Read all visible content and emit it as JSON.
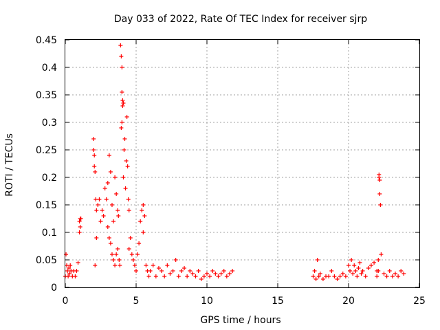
{
  "chart_data": {
    "type": "scatter",
    "title": "Day 033 of 2022, Rate Of TEC Index for receiver sjrp",
    "xlabel": "GPS time / hours",
    "ylabel": "ROTI / TECUs",
    "xlim": [
      0,
      25
    ],
    "ylim": [
      0,
      0.45
    ],
    "xticks": [
      "0",
      "5",
      "10",
      "15",
      "20",
      "25"
    ],
    "yticks": [
      "0",
      "0.05",
      "0.1",
      "0.15",
      "0.2",
      "0.25",
      "0.3",
      "0.35",
      "0.4",
      "0.45"
    ],
    "grid": true,
    "marker": "+",
    "marker_color": "#ff0000",
    "series": [
      {
        "x": [
          0.0,
          0.05,
          0.1,
          0.15,
          0.2,
          0.25,
          0.3,
          0.35,
          0.4,
          0.5,
          0.6,
          0.7,
          0.8,
          0.9,
          1.0,
          1.0,
          1.05,
          1.05,
          1.1,
          2.0,
          2.0,
          2.05,
          2.05,
          2.1,
          2.1,
          2.15,
          2.2,
          2.2,
          2.3,
          2.4,
          2.5,
          2.6,
          2.7,
          2.8,
          2.9,
          3.0,
          3.0,
          3.1,
          3.1,
          3.2,
          3.2,
          3.3,
          3.3,
          3.4,
          3.4,
          3.5,
          3.5,
          3.6,
          3.6,
          3.7,
          3.7,
          3.75,
          3.8,
          3.85,
          3.9,
          3.95,
          3.95,
          4.0,
          4.0,
          4.0,
          4.05,
          4.05,
          4.1,
          4.1,
          4.15,
          4.2,
          4.25,
          4.3,
          4.35,
          4.4,
          4.45,
          4.5,
          4.5,
          4.6,
          4.7,
          4.8,
          4.9,
          5.0,
          5.1,
          5.2,
          5.3,
          5.4,
          5.5,
          5.5,
          5.6,
          5.7,
          5.8,
          5.9,
          6.0,
          6.2,
          6.4,
          6.6,
          6.8,
          7.0,
          7.2,
          7.4,
          7.6,
          7.8,
          8.0,
          8.2,
          8.4,
          8.6,
          8.8,
          9.0,
          9.2,
          9.4,
          9.6,
          9.8,
          10.0,
          10.2,
          10.4,
          10.6,
          10.8,
          11.0,
          11.2,
          11.4,
          11.6,
          11.8,
          17.5,
          17.6,
          17.7,
          17.8,
          17.9,
          18.0,
          18.2,
          18.4,
          18.6,
          18.8,
          19.0,
          19.2,
          19.4,
          19.6,
          19.8,
          20.0,
          20.1,
          20.2,
          20.3,
          20.4,
          20.5,
          20.6,
          20.7,
          20.8,
          20.9,
          21.0,
          21.2,
          21.4,
          21.6,
          21.8,
          22.0,
          22.0,
          22.1,
          22.1,
          22.15,
          22.15,
          22.2,
          22.2,
          22.25,
          22.3,
          22.5,
          22.7,
          22.9,
          23.1,
          23.3,
          23.5,
          23.7,
          23.9
        ],
        "y": [
          0.02,
          0.06,
          0.04,
          0.03,
          0.02,
          0.035,
          0.025,
          0.04,
          0.03,
          0.02,
          0.03,
          0.02,
          0.03,
          0.045,
          0.12,
          0.1,
          0.125,
          0.11,
          0.125,
          0.27,
          0.25,
          0.24,
          0.22,
          0.21,
          0.04,
          0.16,
          0.14,
          0.09,
          0.15,
          0.16,
          0.12,
          0.14,
          0.13,
          0.18,
          0.16,
          0.19,
          0.11,
          0.24,
          0.09,
          0.21,
          0.08,
          0.15,
          0.06,
          0.12,
          0.05,
          0.2,
          0.04,
          0.17,
          0.06,
          0.14,
          0.07,
          0.13,
          0.05,
          0.04,
          0.44,
          0.42,
          0.29,
          0.4,
          0.355,
          0.3,
          0.34,
          0.33,
          0.335,
          0.2,
          0.25,
          0.27,
          0.18,
          0.23,
          0.31,
          0.22,
          0.16,
          0.14,
          0.07,
          0.09,
          0.06,
          0.05,
          0.04,
          0.03,
          0.06,
          0.08,
          0.12,
          0.14,
          0.15,
          0.1,
          0.13,
          0.04,
          0.03,
          0.02,
          0.03,
          0.04,
          0.02,
          0.035,
          0.03,
          0.02,
          0.04,
          0.025,
          0.03,
          0.05,
          0.02,
          0.03,
          0.035,
          0.02,
          0.03,
          0.025,
          0.02,
          0.03,
          0.015,
          0.02,
          0.025,
          0.02,
          0.03,
          0.025,
          0.02,
          0.025,
          0.03,
          0.02,
          0.025,
          0.03,
          0.02,
          0.03,
          0.015,
          0.05,
          0.02,
          0.025,
          0.015,
          0.02,
          0.02,
          0.03,
          0.02,
          0.015,
          0.02,
          0.025,
          0.02,
          0.04,
          0.03,
          0.05,
          0.025,
          0.04,
          0.03,
          0.02,
          0.035,
          0.045,
          0.025,
          0.03,
          0.02,
          0.035,
          0.04,
          0.045,
          0.03,
          0.02,
          0.05,
          0.03,
          0.2,
          0.205,
          0.195,
          0.17,
          0.15,
          0.06,
          0.025,
          0.02,
          0.03,
          0.02,
          0.025,
          0.02,
          0.03,
          0.025
        ]
      }
    ]
  }
}
